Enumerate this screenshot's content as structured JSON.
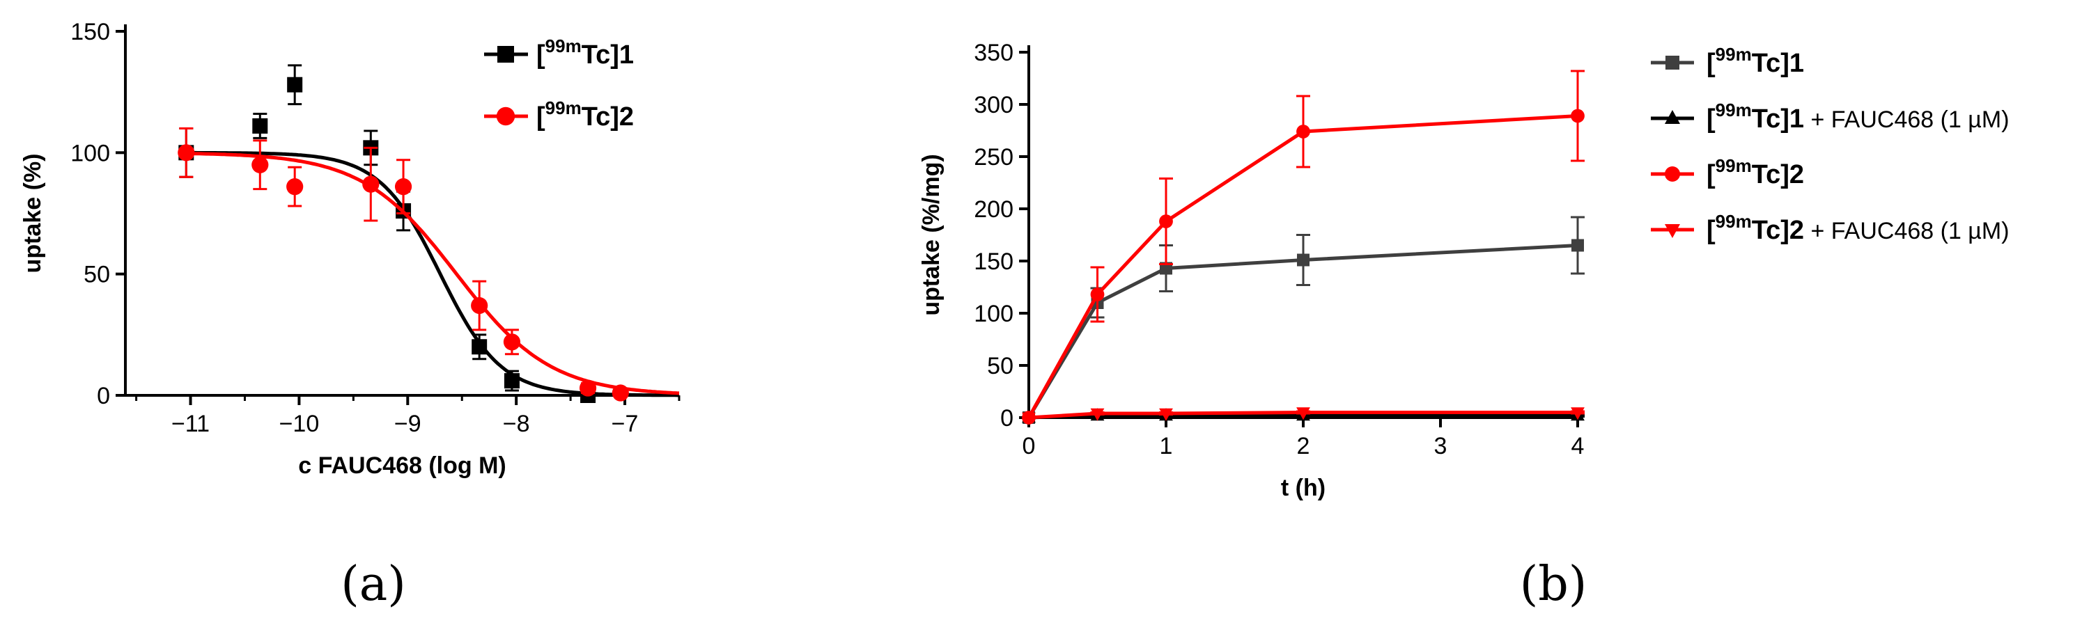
{
  "panels": {
    "a": {
      "caption": "(a)"
    },
    "b": {
      "caption": "(b)"
    }
  },
  "colors": {
    "black": "#000000",
    "red": "#ff0000",
    "grey": "#3f3f3f"
  },
  "chart_data": [
    {
      "type": "scatter",
      "xlabel": "c FAUC468 (log M)",
      "ylabel": "uptake (%)",
      "xlim": [
        -11.6,
        -6.5
      ],
      "ylim": [
        0,
        150
      ],
      "xticks": [
        -11,
        -10,
        -9,
        -8,
        -7
      ],
      "yticks": [
        0,
        50,
        100,
        150
      ],
      "legend_position": "top-right",
      "series": [
        {
          "name": "[99mTc]1",
          "label_sup": "99m",
          "label_main": "Tc]1",
          "color": "#000000",
          "marker": "square",
          "x": [
            -11.04,
            -10.36,
            -10.04,
            -9.34,
            -9.04,
            -8.34,
            -8.04,
            -7.34
          ],
          "y": [
            100,
            111,
            128,
            102,
            76,
            20,
            6,
            0
          ],
          "err": [
            10,
            5,
            8,
            7,
            8,
            5,
            4,
            2
          ],
          "fit": {
            "top": 100,
            "bottom": 0,
            "logEC50": -8.7,
            "hill": 1.55
          }
        },
        {
          "name": "[99mTc]2",
          "label_sup": "99m",
          "label_main": "Tc]2",
          "color": "#ff0000",
          "marker": "circle",
          "x": [
            -11.04,
            -10.36,
            -10.04,
            -9.34,
            -9.04,
            -8.34,
            -8.04,
            -7.34,
            -7.04
          ],
          "y": [
            100,
            95,
            86,
            87,
            86,
            37,
            22,
            3,
            1
          ],
          "err": [
            10,
            10,
            8,
            15,
            11,
            10,
            5,
            2,
            1
          ],
          "fit": {
            "top": 100,
            "bottom": 0,
            "logEC50": -8.55,
            "hill": 1.0
          }
        }
      ]
    },
    {
      "type": "line",
      "xlabel": "t (h)",
      "ylabel": "uptake (%/mg)",
      "xlim": [
        0,
        4
      ],
      "ylim": [
        0,
        350
      ],
      "xticks": [
        0,
        1,
        2,
        3,
        4
      ],
      "yticks": [
        0,
        50,
        100,
        150,
        200,
        250,
        300,
        350
      ],
      "legend_position": "right",
      "series": [
        {
          "name": "[99mTc]1",
          "label_sup": "99m",
          "label_main": "Tc]1",
          "suffix": "",
          "color": "#3f3f3f",
          "marker": "square",
          "x": [
            0,
            0.5,
            1,
            2,
            4
          ],
          "y": [
            0,
            110,
            143,
            151,
            165
          ],
          "err": [
            0,
            14,
            22,
            24,
            27
          ]
        },
        {
          "name": "[99mTc]1 + FAUC468 (1 µM)",
          "label_sup": "99m",
          "label_main": "Tc]1",
          "suffix": " + FAUC468 (1 µM)",
          "color": "#000000",
          "marker": "triangle-up",
          "x": [
            0,
            0.5,
            1,
            2,
            4
          ],
          "y": [
            0,
            2,
            2,
            2,
            2
          ],
          "err": [
            0,
            1,
            1,
            1,
            1
          ]
        },
        {
          "name": "[99mTc]2",
          "label_sup": "99m",
          "label_main": "Tc]2",
          "suffix": "",
          "color": "#ff0000",
          "marker": "circle",
          "x": [
            0,
            0.5,
            1,
            2,
            4
          ],
          "y": [
            0,
            118,
            188,
            274,
            289
          ],
          "err": [
            0,
            26,
            41,
            34,
            43
          ]
        },
        {
          "name": "[99mTc]2 + FAUC468 (1 µM)",
          "label_sup": "99m",
          "label_main": "Tc]2",
          "suffix": " + FAUC468 (1 µM)",
          "color": "#ff0000",
          "marker": "triangle-down",
          "x": [
            0,
            0.5,
            1,
            2,
            4
          ],
          "y": [
            0,
            4,
            4,
            5,
            5
          ],
          "err": [
            0,
            1,
            1,
            1,
            1
          ]
        }
      ]
    }
  ]
}
